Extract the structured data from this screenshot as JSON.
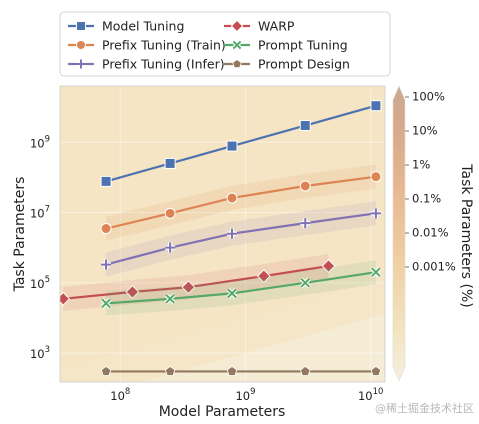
{
  "chart_data": {
    "type": "line",
    "xlabel": "Model Parameters",
    "ylabel": "Task Parameters",
    "colorbar_label": "Task Parameters (%)",
    "x_scale": "log",
    "y_scale": "log",
    "xlim": [
      33000000.0,
      13000000000.0
    ],
    "ylim": [
      150,
      40000000000.0
    ],
    "x_ticks": [
      {
        "value": 100000000.0,
        "label": "10^8"
      },
      {
        "value": 1000000000.0,
        "label": "10^9"
      },
      {
        "value": 10000000000.0,
        "label": "10^10"
      }
    ],
    "y_ticks": [
      {
        "value": 1000.0,
        "label": "10^3"
      },
      {
        "value": 100000.0,
        "label": "10^5"
      },
      {
        "value": 10000000.0,
        "label": "10^7"
      },
      {
        "value": 1000000000.0,
        "label": "10^9"
      }
    ],
    "colorbar_ticks": [
      "100%",
      "10%",
      "1%",
      "0.1%",
      "0.01%",
      "0.001%"
    ],
    "legend_position": "top",
    "grid": true,
    "series": [
      {
        "name": "Model Tuning",
        "color": "#4c72b0",
        "marker": "square",
        "x": [
          77000000.0,
          250000000.0,
          780000000.0,
          3000000000.0,
          11000000000.0
        ],
        "y": [
          77000000.0,
          250000000.0,
          780000000.0,
          3000000000.0,
          11000000000.0
        ]
      },
      {
        "name": "Prefix Tuning (Train)",
        "color": "#dd8452",
        "marker": "circle",
        "x": [
          77000000.0,
          250000000.0,
          780000000.0,
          3000000000.0,
          11000000000.0
        ],
        "y": [
          3500000.0,
          9500000.0,
          26000000.0,
          57000000.0,
          105000000.0
        ]
      },
      {
        "name": "Prefix Tuning (Infer)",
        "color": "#8172b3",
        "marker": "plus",
        "x": [
          77000000.0,
          250000000.0,
          780000000.0,
          3000000000.0,
          11000000000.0
        ],
        "y": [
          330000.0,
          1000000.0,
          2500000.0,
          5000000.0,
          9500000.0
        ]
      },
      {
        "name": "WARP",
        "color": "#c44e52",
        "marker": "diamond",
        "x": [
          35000000.0,
          125000000.0,
          350000000.0,
          1400000000.0,
          4600000000.0
        ],
        "y": [
          35000.0,
          55000.0,
          75000.0,
          155000.0,
          300000.0
        ]
      },
      {
        "name": "Prompt Tuning",
        "color": "#55a868",
        "marker": "x",
        "x": [
          77000000.0,
          250000000.0,
          780000000.0,
          3000000000.0,
          11000000000.0
        ],
        "y": [
          26000.0,
          35000.0,
          50000.0,
          100000.0,
          200000.0
        ]
      },
      {
        "name": "Prompt Design",
        "color": "#937860",
        "marker": "pentagon",
        "x": [
          77000000.0,
          250000000.0,
          780000000.0,
          3000000000.0,
          11000000000.0
        ],
        "y": [
          300,
          300,
          300,
          300,
          300
        ]
      }
    ]
  },
  "watermark": "@稀土掘金技术社区"
}
